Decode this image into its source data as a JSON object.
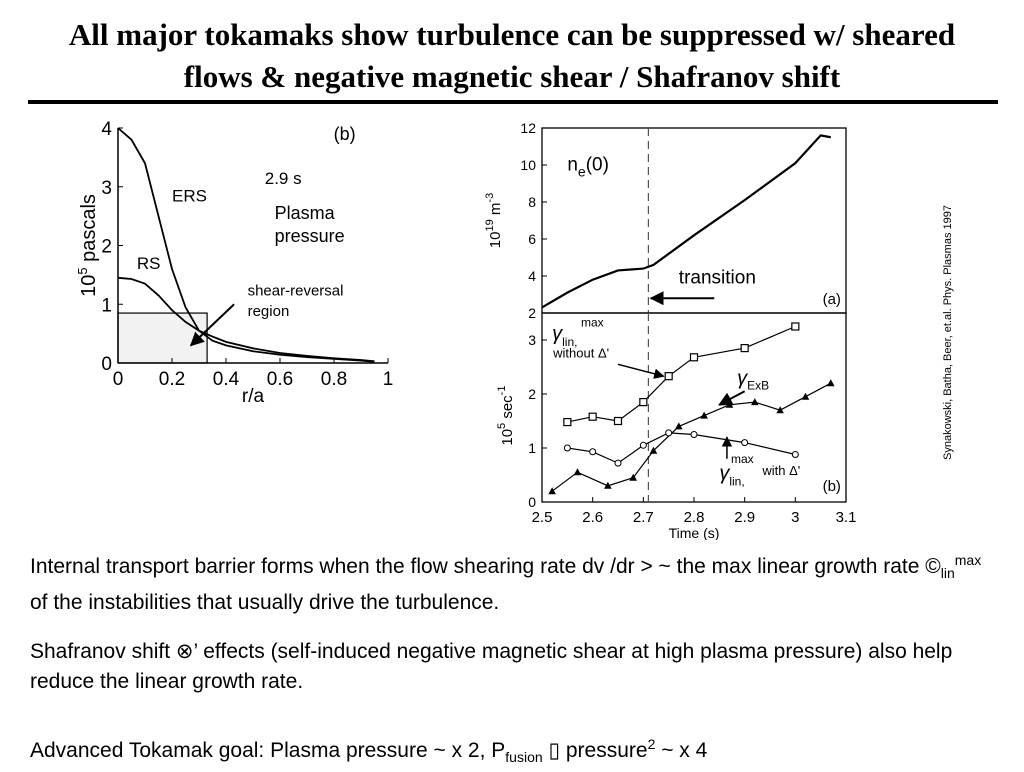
{
  "slide": {
    "title_line1": "All major tokamaks show turbulence can be suppressed w/ sheared",
    "title_line2": "flows & negative magnetic shear / Shafranov shift",
    "credit": "Synakowski, Batha, Beer, et.al. Phys. Plasmas 1997"
  },
  "text": {
    "p1_a": "Internal transport barrier forms when the flow shearing rate dv",
    "p1_b": " /dr > ~  the max linear growth rate ©",
    "p1_sub": "lin",
    "p1_sup": "max",
    "p1_c": " of the instabilities that usually drive the turbulence.",
    "p2_a": "Shafranov shift ",
    "p2_sym": "⊗",
    "p2_b": "’  effects (self-induced negative magnetic shear at high plasma pressure) also help reduce the linear growth rate.",
    "p3_a": "Advanced Tokamak goal: Plasma pressure ~ x 2,   P",
    "p3_sub": "fusion",
    "p3_b": " ▯ pressure",
    "p3_sup": "2",
    "p3_c": " ~ x 4"
  },
  "chart_data": [
    {
      "type": "line",
      "panel_label": "(b)",
      "xlabel": "r/a",
      "ylabel_base": "10",
      "ylabel_exp": "5",
      "ylabel_unit": " pascals",
      "xlim": [
        0,
        1
      ],
      "ylim": [
        0,
        4
      ],
      "xticks": [
        "0",
        "0.2",
        "0.4",
        "0.6",
        "0.8",
        "1"
      ],
      "yticks": [
        "0",
        "1",
        "2",
        "3",
        "4"
      ],
      "annotations": {
        "time": "2.9 s",
        "plasma1": "Plasma",
        "plasma2": "pressure",
        "region1": "shear-reversal",
        "region2": "region"
      },
      "series": [
        {
          "name": "ERS",
          "x": [
            0,
            0.05,
            0.1,
            0.15,
            0.2,
            0.25,
            0.3,
            0.35,
            0.4,
            0.5,
            0.6,
            0.7,
            0.8,
            0.9,
            0.95
          ],
          "y": [
            4.0,
            3.8,
            3.4,
            2.5,
            1.6,
            0.95,
            0.55,
            0.38,
            0.3,
            0.2,
            0.14,
            0.1,
            0.07,
            0.04,
            0.02
          ]
        },
        {
          "name": "RS",
          "x": [
            0,
            0.05,
            0.1,
            0.15,
            0.2,
            0.25,
            0.3,
            0.35,
            0.4,
            0.5,
            0.6,
            0.7,
            0.8,
            0.9,
            0.95
          ],
          "y": [
            1.45,
            1.43,
            1.35,
            1.15,
            0.9,
            0.7,
            0.55,
            0.45,
            0.36,
            0.25,
            0.17,
            0.12,
            0.08,
            0.05,
            0.03
          ]
        }
      ],
      "shaded_region": {
        "x": [
          0,
          0.33
        ],
        "y": [
          0,
          0.85
        ]
      }
    },
    {
      "type": "line",
      "panel_label": "(a)",
      "xlim": [
        2.5,
        3.1
      ],
      "ylim": [
        2,
        12
      ],
      "yticks": [
        "2",
        "4",
        "6",
        "8",
        "10",
        "12"
      ],
      "ylabel_base": "10",
      "ylabel_exp": "19",
      "ylabel_unit": " m",
      "ylabel_exp2": "-3",
      "annotations": {
        "series_n": "n",
        "series_sub": "e",
        "series_rest": "(0)",
        "arrow": "transition"
      },
      "transition_x": 2.71,
      "series": [
        {
          "name": "ne(0)",
          "x": [
            2.5,
            2.55,
            2.6,
            2.65,
            2.7,
            2.72,
            2.8,
            2.9,
            3.0,
            3.05,
            3.07
          ],
          "y": [
            2.3,
            3.1,
            3.8,
            4.3,
            4.4,
            4.6,
            6.2,
            8.1,
            10.1,
            11.6,
            11.5
          ]
        }
      ]
    },
    {
      "type": "line",
      "panel_label": "(b)",
      "xlabel": "Time (s)",
      "xlim": [
        2.5,
        3.1
      ],
      "ylim": [
        0,
        3.5
      ],
      "xticks": [
        "2.5",
        "2.6",
        "2.7",
        "2.8",
        "2.9",
        "3",
        "3.1"
      ],
      "yticks": [
        "0",
        "1",
        "2",
        "3"
      ],
      "ylabel_base": "10",
      "ylabel_exp": "5",
      "ylabel_unit": " sec",
      "ylabel_exp2": "-1",
      "transition_x": 2.71,
      "annotations": {
        "g1_sup": "max",
        "g1_sub": "lin,",
        "g1_note": "without Δ'",
        "gexb_sub": "ExB",
        "g2_sup": "max",
        "g2_sub": "lin,",
        "g2_note": "with Δ'"
      },
      "series": [
        {
          "name": "without Δ'",
          "marker": "square",
          "x": [
            2.55,
            2.6,
            2.65,
            2.7,
            2.75,
            2.8,
            2.9,
            3.0
          ],
          "y": [
            1.48,
            1.58,
            1.5,
            1.85,
            2.33,
            2.68,
            2.85,
            3.25
          ]
        },
        {
          "name": "ExB",
          "marker": "triangle",
          "x": [
            2.52,
            2.57,
            2.63,
            2.68,
            2.72,
            2.77,
            2.82,
            2.87,
            2.92,
            2.97,
            3.02,
            3.07
          ],
          "y": [
            0.2,
            0.55,
            0.3,
            0.45,
            0.95,
            1.4,
            1.6,
            1.8,
            1.85,
            1.7,
            1.95,
            2.2
          ]
        },
        {
          "name": "with Δ'",
          "marker": "circle",
          "x": [
            2.55,
            2.6,
            2.65,
            2.7,
            2.75,
            2.8,
            2.9,
            3.0
          ],
          "y": [
            1.0,
            0.93,
            0.72,
            1.05,
            1.28,
            1.25,
            1.1,
            0.88
          ]
        }
      ]
    }
  ]
}
